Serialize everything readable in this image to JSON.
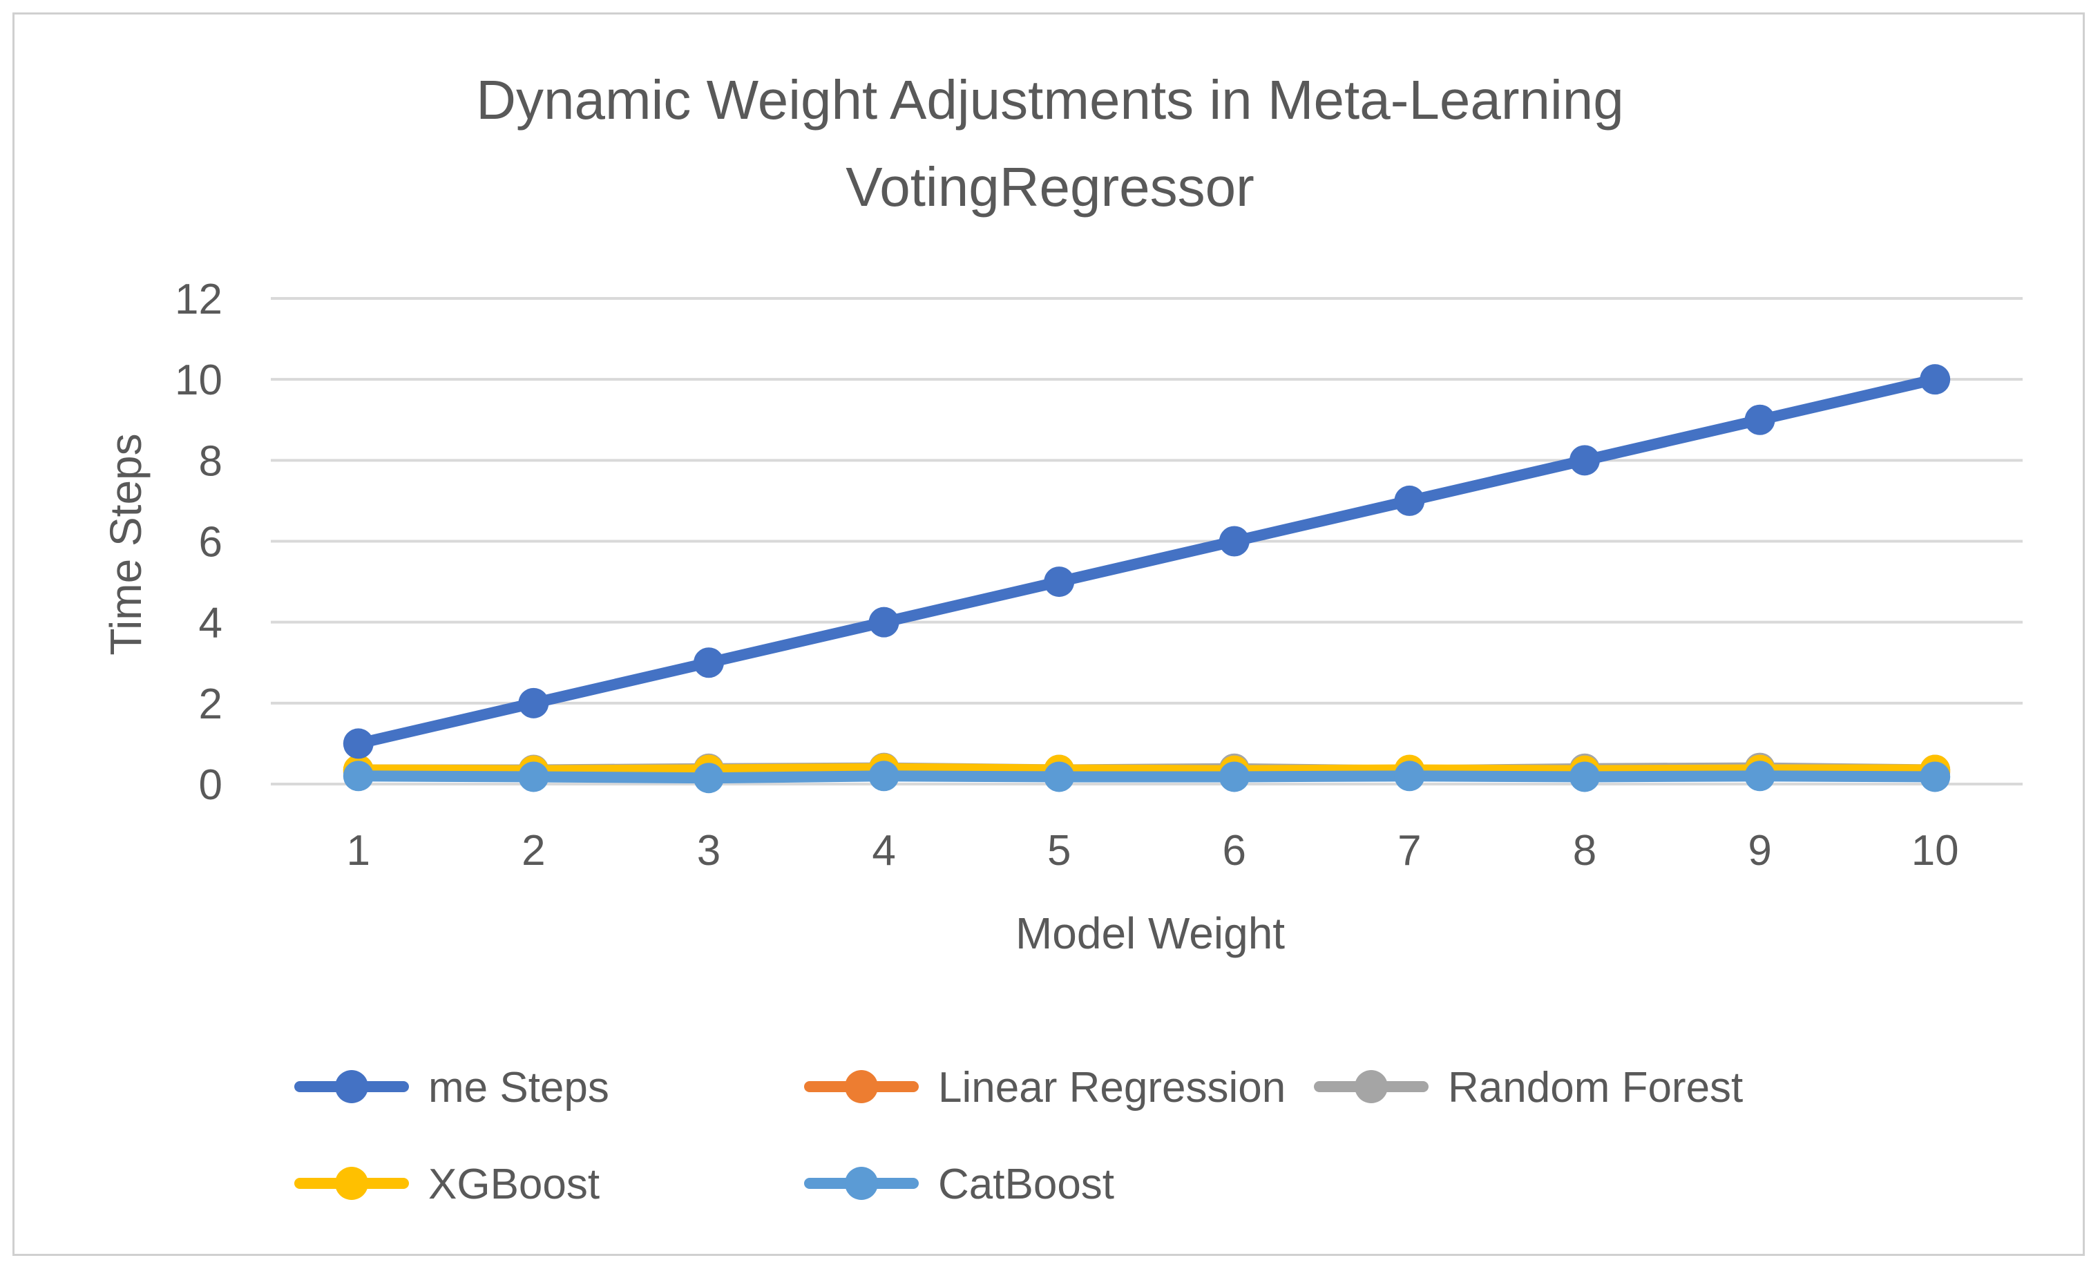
{
  "chart_data": {
    "type": "line",
    "title_lines": [
      "Dynamic Weight Adjustments in Meta-Learning",
      "VotingRegressor"
    ],
    "xlabel": "Model Weight",
    "ylabel": "Time Steps",
    "categories": [
      "1",
      "2",
      "3",
      "4",
      "5",
      "6",
      "7",
      "8",
      "9",
      "10"
    ],
    "ylim": [
      0,
      12
    ],
    "yticks": [
      0,
      2,
      4,
      6,
      8,
      10,
      12
    ],
    "ytick_labels": [
      "0",
      "2",
      "4",
      "6",
      "8",
      "10",
      "12"
    ],
    "grid": true,
    "legend_position": "bottom",
    "series": [
      {
        "name": "me Steps",
        "color": "#4472C4",
        "values": [
          1,
          2,
          3,
          4,
          5,
          6,
          7,
          8,
          9,
          10
        ]
      },
      {
        "name": "Linear Regression",
        "color": "#ED7D31",
        "values": [
          0.3,
          0.3,
          0.3,
          0.3,
          0.3,
          0.3,
          0.3,
          0.3,
          0.3,
          0.3
        ]
      },
      {
        "name": "Random Forest",
        "color": "#A5A5A5",
        "values": [
          0.35,
          0.35,
          0.38,
          0.4,
          0.35,
          0.38,
          0.33,
          0.38,
          0.4,
          0.35
        ]
      },
      {
        "name": "XGBoost",
        "color": "#FFC000",
        "values": [
          0.35,
          0.33,
          0.35,
          0.38,
          0.35,
          0.33,
          0.35,
          0.33,
          0.35,
          0.35
        ]
      },
      {
        "name": "CatBoost",
        "color": "#5B9BD5",
        "values": [
          0.2,
          0.18,
          0.15,
          0.2,
          0.18,
          0.18,
          0.2,
          0.18,
          0.2,
          0.18
        ]
      }
    ]
  }
}
